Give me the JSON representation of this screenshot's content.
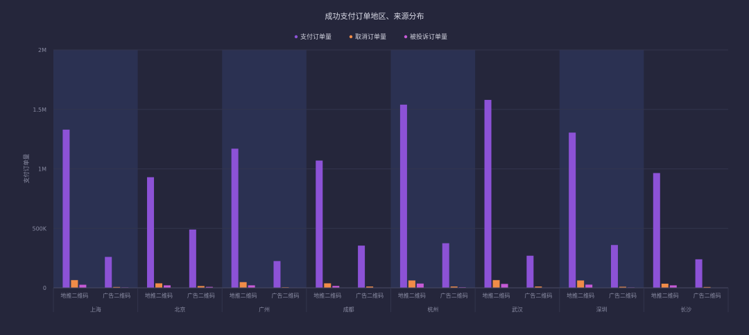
{
  "chart_data": {
    "type": "bar",
    "title": "成功支付订单地区、来源分布",
    "ylabel": "支付订单量",
    "xlabel": "",
    "ylim": [
      0,
      2000000
    ],
    "yticks": [
      {
        "value": 0,
        "label": "0"
      },
      {
        "value": 500000,
        "label": "500K"
      },
      {
        "value": 1000000,
        "label": "1M"
      },
      {
        "value": 1500000,
        "label": "1.5M"
      },
      {
        "value": 2000000,
        "label": "2M"
      }
    ],
    "grid": true,
    "legend_position": "top-center",
    "groups": [
      "上海",
      "北京",
      "广州",
      "成都",
      "杭州",
      "武汉",
      "深圳",
      "长沙"
    ],
    "subcategories": [
      "地推二维码",
      "广告二维码"
    ],
    "series": [
      {
        "name": "支付订单量",
        "color": "#8c52d6",
        "values": [
          [
            1330000,
            260000
          ],
          [
            930000,
            490000
          ],
          [
            1170000,
            225000
          ],
          [
            1070000,
            355000
          ],
          [
            1540000,
            375000
          ],
          [
            1580000,
            270000
          ],
          [
            1305000,
            360000
          ],
          [
            965000,
            240000
          ]
        ]
      },
      {
        "name": "取消订单量",
        "color": "#f08c48",
        "values": [
          [
            65000,
            7000
          ],
          [
            38000,
            15000
          ],
          [
            48000,
            5000
          ],
          [
            38000,
            11000
          ],
          [
            62000,
            11000
          ],
          [
            65000,
            11000
          ],
          [
            62000,
            9000
          ],
          [
            35000,
            7000
          ]
        ]
      },
      {
        "name": "被投诉订单量",
        "color": "#c55ad6",
        "values": [
          [
            26000,
            4000
          ],
          [
            21000,
            8000
          ],
          [
            21000,
            3000
          ],
          [
            16000,
            3000
          ],
          [
            36000,
            5000
          ],
          [
            33000,
            3000
          ],
          [
            27000,
            4000
          ],
          [
            21000,
            2000
          ]
        ]
      }
    ]
  },
  "colors": {
    "background": "#25263b",
    "band": "#2b3152",
    "grid": "#33354d",
    "axis": "#4a4c66"
  }
}
